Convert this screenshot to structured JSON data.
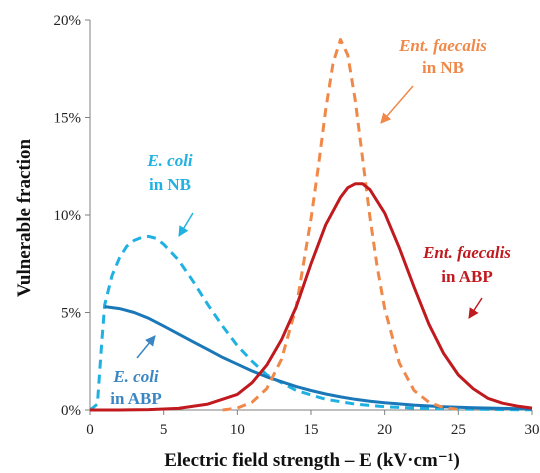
{
  "chart_data": {
    "type": "line",
    "xlabel": "Electric field strength – E (kV·cm⁻¹)",
    "ylabel": "Vulnerable fraction",
    "xlim": [
      0,
      30
    ],
    "ylim": [
      0,
      20
    ],
    "xticks": [
      "0",
      "5",
      "10",
      "15",
      "20",
      "25",
      "30"
    ],
    "yticks": [
      "0%",
      "5%",
      "10%",
      "15%",
      "20%"
    ],
    "grid": false,
    "legend": "none (curves labelled by annotations)",
    "series": [
      {
        "name": "E. coli in NB",
        "color": "#1fb1e2",
        "style": "dashed",
        "x": [
          0,
          0.5,
          0.8,
          1,
          1.5,
          2,
          2.5,
          3,
          3.5,
          4,
          4.5,
          5,
          6,
          7,
          8,
          9,
          10,
          11,
          12,
          14,
          16,
          18,
          20,
          22,
          24,
          26,
          28,
          30
        ],
        "y": [
          0,
          0.3,
          3.5,
          5.4,
          6.9,
          7.8,
          8.4,
          8.7,
          8.85,
          8.9,
          8.8,
          8.5,
          7.7,
          6.6,
          5.4,
          4.3,
          3.3,
          2.5,
          1.8,
          1.0,
          0.55,
          0.3,
          0.17,
          0.1,
          0.06,
          0.04,
          0.02,
          0.01
        ]
      },
      {
        "name": "E. coli in ABP",
        "color": "#1a78b8",
        "style": "solid",
        "x": [
          1,
          2,
          3,
          4,
          5,
          6,
          7,
          8,
          9,
          10,
          11,
          12,
          13,
          14,
          15,
          16,
          17,
          18,
          19,
          20,
          22,
          24,
          26,
          28,
          30
        ],
        "y": [
          5.3,
          5.2,
          5.0,
          4.7,
          4.3,
          3.9,
          3.5,
          3.1,
          2.7,
          2.35,
          2.0,
          1.7,
          1.45,
          1.2,
          1.0,
          0.82,
          0.67,
          0.55,
          0.45,
          0.37,
          0.25,
          0.17,
          0.12,
          0.08,
          0.05
        ]
      },
      {
        "name": "Ent. faecalis in NB",
        "color": "#f0884a",
        "style": "dashed",
        "x": [
          9,
          10,
          11,
          12,
          13,
          14,
          15,
          15.5,
          16,
          16.5,
          17,
          17.5,
          18,
          18.5,
          19,
          19.5,
          20,
          21,
          22,
          23,
          24,
          25
        ],
        "y": [
          0,
          0.1,
          0.4,
          1.1,
          2.6,
          5.3,
          9.8,
          12.5,
          15.4,
          17.8,
          19.0,
          18.2,
          15.9,
          12.9,
          9.9,
          7.3,
          5.2,
          2.4,
          1.0,
          0.4,
          0.12,
          0.03
        ]
      },
      {
        "name": "Ent. faecalis in ABP",
        "color": "#c01a1f",
        "style": "solid",
        "x": [
          0,
          2,
          4,
          6,
          8,
          10,
          11,
          12,
          13,
          14,
          15,
          16,
          17,
          17.5,
          18,
          18.5,
          19,
          20,
          21,
          22,
          23,
          24,
          25,
          26,
          27,
          28,
          29,
          30
        ],
        "y": [
          0,
          0,
          0.02,
          0.08,
          0.3,
          0.8,
          1.4,
          2.3,
          3.6,
          5.3,
          7.5,
          9.5,
          10.9,
          11.4,
          11.6,
          11.6,
          11.3,
          10.1,
          8.3,
          6.3,
          4.4,
          2.9,
          1.8,
          1.1,
          0.6,
          0.35,
          0.2,
          0.1
        ]
      }
    ],
    "annotations": [
      {
        "italic": "E. coli",
        "normal": "in NB",
        "color": "#1fb1e2"
      },
      {
        "italic": "E. coli",
        "normal": "in ABP",
        "color": "#3a86c4"
      },
      {
        "italic": "Ent. faecalis",
        "normal": "in NB",
        "color": "#f0884a"
      },
      {
        "italic": "Ent. faecalis",
        "normal": "in ABP",
        "color": "#c01a1f"
      }
    ]
  }
}
